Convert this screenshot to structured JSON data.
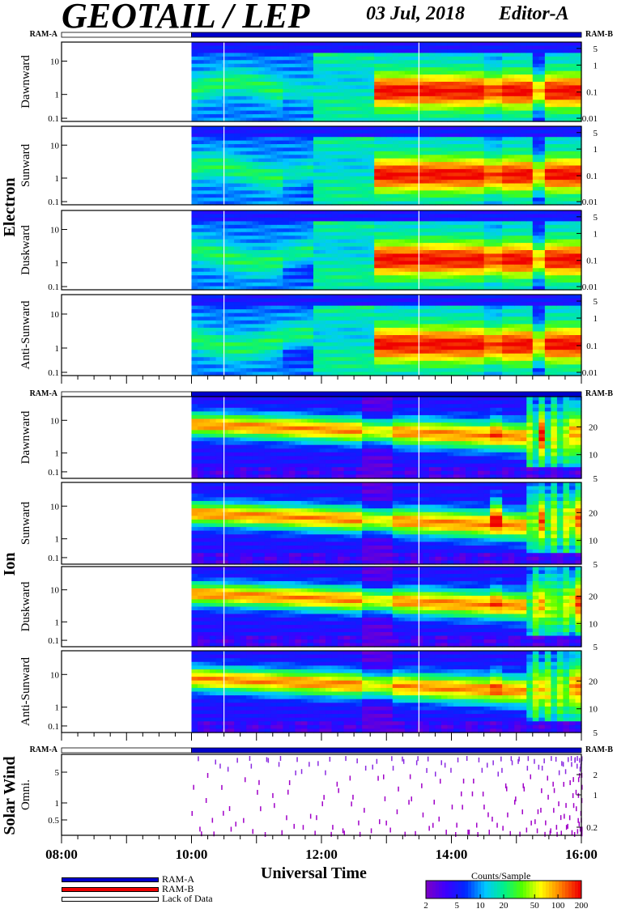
{
  "header": {
    "title": "GEOTAIL / LEP",
    "date": "03 Jul, 2018",
    "editor": "Editor-A"
  },
  "colors": {
    "ram_a": "#0000cc",
    "ram_b": "#ee0000",
    "lack_of_data": "#ffffff"
  },
  "legend": {
    "ram_a": "RAM-A",
    "ram_b": "RAM-B",
    "lack": "Lack of Data"
  },
  "chart_data": {
    "type": "heatmap",
    "xlabel": "Universal Time",
    "x_ticks": [
      "08:00",
      "10:00",
      "12:00",
      "14:00",
      "16:00"
    ],
    "x_range_hours": [
      8,
      16
    ],
    "data_start_hour": 10.0,
    "colorbar": {
      "title": "Counts/Sample",
      "ticks": [
        "2",
        "5",
        "10",
        "20",
        "50",
        "100",
        "200"
      ],
      "range": [
        2,
        200
      ],
      "scale": "log"
    },
    "groups": [
      {
        "name": "Electron",
        "ram_left": "RAM-A",
        "ram_right": "RAM-B",
        "panels": [
          {
            "label": "Dawnward",
            "left_ticks": [
              "10",
              "1",
              "0.1"
            ],
            "right_ticks": [
              "5",
              "1",
              "0.1",
              "0.01"
            ]
          },
          {
            "label": "Sunward",
            "left_ticks": [
              "10",
              "1",
              "0.1"
            ],
            "right_ticks": [
              "5",
              "1",
              "0.1",
              "0.01"
            ]
          },
          {
            "label": "Duskward",
            "left_ticks": [
              "10",
              "1",
              "0.1"
            ],
            "right_ticks": [
              "5",
              "1",
              "0.1",
              "0.01"
            ]
          },
          {
            "label": "Anti-Sunward",
            "left_ticks": [
              "10",
              "1",
              "0.1"
            ],
            "right_ticks": [
              "5",
              "1",
              "0.1",
              "0.01"
            ]
          }
        ]
      },
      {
        "name": "Ion",
        "ram_left": "RAM-A",
        "ram_right": "RAM-B",
        "panels": [
          {
            "label": "Dawnward",
            "left_ticks": [
              "10",
              "1",
              "0.1"
            ],
            "right_ticks": [
              "20",
              "10",
              "5"
            ]
          },
          {
            "label": "Sunward",
            "left_ticks": [
              "10",
              "1",
              "0.1"
            ],
            "right_ticks": [
              "20",
              "10",
              "5"
            ]
          },
          {
            "label": "Duskward",
            "left_ticks": [
              "10",
              "1",
              "0.1"
            ],
            "right_ticks": [
              "20",
              "10",
              "5"
            ]
          },
          {
            "label": "Anti-Sunward",
            "left_ticks": [
              "10",
              "1",
              "0.1"
            ],
            "right_ticks": [
              "20",
              "10",
              "5"
            ]
          }
        ]
      },
      {
        "name": "Solar Wind",
        "ram_left": "RAM-A",
        "ram_right": "RAM-B",
        "panels": [
          {
            "label": "Omni.",
            "left_ticks": [
              "5",
              "1",
              "0.5"
            ],
            "right_ticks": [
              "2",
              "1",
              "0.2"
            ]
          }
        ]
      }
    ]
  }
}
